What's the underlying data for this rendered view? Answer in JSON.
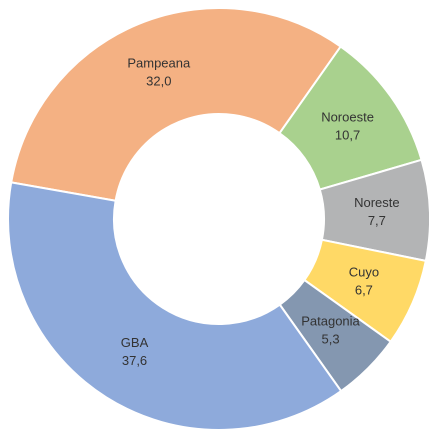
{
  "chart_data": {
    "type": "pie",
    "categories": [
      "Pampeana",
      "Noroeste",
      "Noreste",
      "Cuyo",
      "Patagonia",
      "GBA"
    ],
    "values": [
      32.0,
      10.7,
      7.7,
      6.7,
      5.3,
      37.6
    ],
    "value_labels": [
      "32,0",
      "10,7",
      "7,7",
      "6,7",
      "5,3",
      "37,6"
    ],
    "colors": [
      "#f4b183",
      "#a9d18e",
      "#b3b4b5",
      "#ffd966",
      "#8497b0",
      "#8eaadb"
    ]
  }
}
